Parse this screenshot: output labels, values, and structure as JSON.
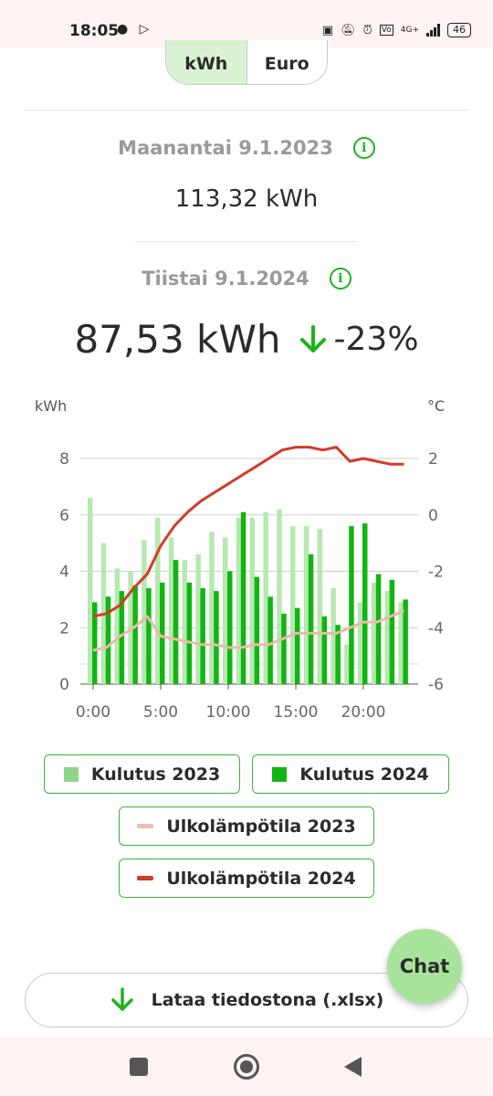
{
  "status_bar": {
    "time": "18:05",
    "left_icons": [
      "chat-bubble-icon",
      "play-store-icon"
    ],
    "right_icons": [
      "nfc-icon",
      "bell-muted-icon",
      "alarm-icon",
      "volte-icon"
    ],
    "network": "4G+",
    "battery": "46"
  },
  "unit_toggle": {
    "options": [
      "kWh",
      "Euro"
    ],
    "selected": "kWh"
  },
  "comparison": {
    "previous": {
      "date_label": "Maanantai 9.1.2023",
      "value": "113,32 kWh"
    },
    "current": {
      "date_label": "Tiistai 9.1.2024",
      "value": "87,53 kWh",
      "change": "-23%",
      "trend_icon": "arrow-down-icon"
    }
  },
  "colors": {
    "accent": "#1bb31b",
    "bar_2023": "#b6e8b0",
    "bar_2024": "#11b511",
    "temp_2023": "#e9bba8",
    "temp_2024": "#d43a2a"
  },
  "chart_data": {
    "type": "bar",
    "ylabel_left": "kWh",
    "ylabel_right": "°C",
    "ylim_left": [
      0,
      8
    ],
    "ylim_right": [
      -6,
      2
    ],
    "yticks_left": [
      "0",
      "2",
      "4",
      "6",
      "8"
    ],
    "yticks_right": [
      "-6",
      "-4",
      "-2",
      "0",
      "2"
    ],
    "xtick_labels": [
      "0:00",
      "5:00",
      "10:00",
      "15:00",
      "20:00"
    ],
    "x": [
      0,
      1,
      2,
      3,
      4,
      5,
      6,
      7,
      8,
      9,
      10,
      11,
      12,
      13,
      14,
      15,
      16,
      17,
      18,
      19,
      20,
      21,
      22,
      23
    ],
    "series": [
      {
        "name": "Kulutus 2023",
        "kind": "bar",
        "axis": "left",
        "values": [
          6.6,
          5.0,
          4.1,
          4.0,
          5.1,
          5.9,
          5.2,
          4.4,
          4.6,
          5.4,
          5.2,
          5.9,
          5.9,
          6.1,
          6.2,
          5.6,
          5.6,
          5.5,
          3.4,
          1.4,
          2.9,
          3.6,
          3.3,
          2.9
        ]
      },
      {
        "name": "Kulutus 2024",
        "kind": "bar",
        "axis": "left",
        "values": [
          2.9,
          3.1,
          3.3,
          3.5,
          3.4,
          3.6,
          4.4,
          3.6,
          3.4,
          3.3,
          4.0,
          6.1,
          3.8,
          3.1,
          2.5,
          2.7,
          4.6,
          2.4,
          2.1,
          5.6,
          5.7,
          3.9,
          3.7,
          3.0
        ]
      },
      {
        "name": "Ulkolämpötila 2023",
        "kind": "line",
        "axis": "right",
        "values": [
          -4.8,
          -4.7,
          -4.3,
          -4.0,
          -3.6,
          -4.3,
          -4.4,
          -4.5,
          -4.6,
          -4.6,
          -4.7,
          -4.7,
          -4.6,
          -4.6,
          -4.4,
          -4.2,
          -4.2,
          -4.2,
          -4.2,
          -4.0,
          -3.8,
          -3.8,
          -3.6,
          -3.4
        ]
      },
      {
        "name": "Ulkolämpötila 2024",
        "kind": "line",
        "axis": "right",
        "values": [
          -3.6,
          -3.5,
          -3.2,
          -2.6,
          -2.1,
          -1.1,
          -0.4,
          0.1,
          0.5,
          0.8,
          1.1,
          1.4,
          1.7,
          2.0,
          2.3,
          2.4,
          2.4,
          2.3,
          2.4,
          1.9,
          2.0,
          1.9,
          1.8,
          1.8
        ]
      }
    ]
  },
  "legend": [
    {
      "label": "Kulutus 2023",
      "kind": "square",
      "color": "#8fd58a"
    },
    {
      "label": "Kulutus 2024",
      "kind": "square",
      "color": "#11b511"
    },
    {
      "label": "Ulkolämpötila 2023",
      "kind": "line",
      "color": "#f1bcb6"
    },
    {
      "label": "Ulkolämpötila 2024",
      "kind": "line",
      "color": "#d43a2a"
    }
  ],
  "chat_button": {
    "label": "Chat"
  },
  "download_button": {
    "label": "Lataa tiedostona (.xlsx)",
    "icon": "arrow-down-icon"
  },
  "nav_bar": {
    "icons": [
      "recents-square-icon",
      "home-circle-icon",
      "back-triangle-icon"
    ]
  }
}
